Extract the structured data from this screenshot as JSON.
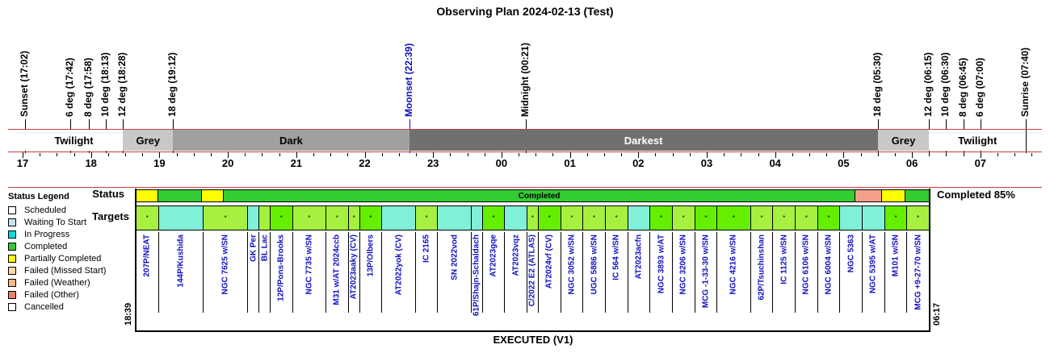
{
  "title": "Observing Plan 2024-02-13 (Test)",
  "events": [
    {
      "label": "Sunset (17:02)",
      "time": "17:02",
      "color": "#000000"
    },
    {
      "label": "6 deg (17:42)",
      "time": "17:42",
      "color": "#000000"
    },
    {
      "label": "8 deg (17:58)",
      "time": "17:58",
      "color": "#000000"
    },
    {
      "label": "10 deg (18:13)",
      "time": "18:13",
      "color": "#000000"
    },
    {
      "label": "12 deg (18:28)",
      "time": "18:28",
      "color": "#000000"
    },
    {
      "label": "18 deg (19:12)",
      "time": "19:12",
      "color": "#000000"
    },
    {
      "label": "Moonset (22:39)",
      "time": "22:39",
      "color": "#1010c0"
    },
    {
      "label": "Midnight (00:21)",
      "time": "24:21",
      "color": "#000000"
    },
    {
      "label": "18 deg (05:30)",
      "time": "29:30",
      "color": "#000000"
    },
    {
      "label": "12 deg (06:15)",
      "time": "30:15",
      "color": "#000000"
    },
    {
      "label": "10 deg (06:30)",
      "time": "30:30",
      "color": "#000000"
    },
    {
      "label": "8 deg (06:45)",
      "time": "30:45",
      "color": "#000000"
    },
    {
      "label": "6 deg (07:00)",
      "time": "31:00",
      "color": "#000000"
    },
    {
      "label": "Sunrise (07:40)",
      "time": "31:40",
      "color": "#000000"
    }
  ],
  "bands": [
    {
      "label": "Twilight",
      "start": "17:02",
      "end": "18:28",
      "bg": "#ffffff",
      "fg": "#000000"
    },
    {
      "label": "Grey",
      "start": "18:28",
      "end": "19:12",
      "bg": "#c8c8c8",
      "fg": "#000000"
    },
    {
      "label": "Dark",
      "start": "19:12",
      "end": "22:39",
      "bg": "#a0a0a0",
      "fg": "#000000"
    },
    {
      "label": "Darkest",
      "start": "22:39",
      "end": "29:30",
      "bg": "#707070",
      "fg": "#ffffff"
    },
    {
      "label": "Grey",
      "start": "29:30",
      "end": "30:15",
      "bg": "#c8c8c8",
      "fg": "#000000"
    },
    {
      "label": "Twilight",
      "start": "30:15",
      "end": "31:40",
      "bg": "#ffffff",
      "fg": "#000000"
    }
  ],
  "hours": [
    "17",
    "18",
    "19",
    "20",
    "21",
    "22",
    "23",
    "00",
    "01",
    "02",
    "03",
    "04",
    "05",
    "06",
    "07"
  ],
  "row_labels": {
    "status": "Status",
    "targets": "Targets"
  },
  "status_segments": [
    {
      "label": "",
      "units": 1,
      "color": "#ffff00"
    },
    {
      "label": "",
      "units": 2,
      "color": "#33cc33"
    },
    {
      "label": "",
      "units": 1,
      "color": "#ffff00"
    },
    {
      "label": "Completed",
      "units": 29,
      "color": "#33cc33"
    },
    {
      "label": "",
      "units": 1.2,
      "color": "#f4a08a"
    },
    {
      "label": "",
      "units": 1.1,
      "color": "#ffff00"
    },
    {
      "label": "",
      "units": 1.1,
      "color": "#33cc33"
    }
  ],
  "completed_text": "Completed 85%",
  "targets": [
    {
      "name": "207P/NEAT",
      "units": 1,
      "color": "#a6f040",
      "mark": "*"
    },
    {
      "name": "144P/Kushida",
      "units": 2,
      "color": "#80f0d8",
      "mark": ""
    },
    {
      "name": "NGC 7625 w/SN",
      "units": 2,
      "color": "#a6f040",
      "mark": "*"
    },
    {
      "name": "GK Per",
      "units": 0.5,
      "color": "#80f0d8",
      "mark": ""
    },
    {
      "name": "BL Lac",
      "units": 0.5,
      "color": "#a6f040",
      "mark": ""
    },
    {
      "name": "12P/Pons-Brooks",
      "units": 1,
      "color": "#66ee00",
      "mark": "*"
    },
    {
      "name": "NGC 7735 w/SN",
      "units": 1.5,
      "color": "#a6f040",
      "mark": "*"
    },
    {
      "name": "M31 w/AT 2024ccb",
      "units": 1,
      "color": "#a6f040",
      "mark": "*"
    },
    {
      "name": "AT2023aaky (CV)",
      "units": 0.5,
      "color": "#a6f040",
      "mark": "*"
    },
    {
      "name": "13P/Olbers",
      "units": 1,
      "color": "#66ee00",
      "mark": "*"
    },
    {
      "name": "AT2022yok (CV)",
      "units": 1.5,
      "color": "#80f0d8",
      "mark": ""
    },
    {
      "name": "IC 2165",
      "units": 1,
      "color": "#a6f040",
      "mark": "*"
    },
    {
      "name": "SN 2022vod",
      "units": 1.5,
      "color": "#80f0d8",
      "mark": ""
    },
    {
      "name": "61P/Shajn-Schaldach",
      "units": 0.5,
      "color": "#80f0d8",
      "mark": ""
    },
    {
      "name": "AT2023gqe",
      "units": 1,
      "color": "#66ee00",
      "mark": "*"
    },
    {
      "name": "AT2023vqz",
      "units": 1,
      "color": "#80f0d8",
      "mark": ""
    },
    {
      "name": "C/2022 E2 (ATLAS)",
      "units": 0.5,
      "color": "#a6f040",
      "mark": "*"
    },
    {
      "name": "AT2024vf (CV)",
      "units": 1,
      "color": "#66ee00",
      "mark": "*"
    },
    {
      "name": "NGC 3052 w/SN",
      "units": 1,
      "color": "#a6f040",
      "mark": "*"
    },
    {
      "name": "UGC 5886 w/SN",
      "units": 1,
      "color": "#a6f040",
      "mark": "*"
    },
    {
      "name": "IC 564 w/SN",
      "units": 1,
      "color": "#a6f040",
      "mark": "*"
    },
    {
      "name": "AT2023acfn",
      "units": 1,
      "color": "#80f0d8",
      "mark": ""
    },
    {
      "name": "NGC 3893 w/AT",
      "units": 1,
      "color": "#66ee00",
      "mark": "*"
    },
    {
      "name": "NGC 3206 w/SN",
      "units": 1,
      "color": "#a6f040",
      "mark": "*"
    },
    {
      "name": "MCG -1-33-30 w/SN",
      "units": 1,
      "color": "#66ee00",
      "mark": "*"
    },
    {
      "name": "NGC 4216 w/SN",
      "units": 1.5,
      "color": "#66ee00",
      "mark": "*"
    },
    {
      "name": "62P/Tsuchinshan",
      "units": 1,
      "color": "#a6f040",
      "mark": "*"
    },
    {
      "name": "IC 1125 w/SN",
      "units": 1,
      "color": "#a6f040",
      "mark": "*"
    },
    {
      "name": "NGC 6106 w/SN",
      "units": 1,
      "color": "#a6f040",
      "mark": "*"
    },
    {
      "name": "NGC 6004 w/SN",
      "units": 1,
      "color": "#66ee00",
      "mark": "*"
    },
    {
      "name": "NGC 5363",
      "units": 1,
      "color": "#80f0d8",
      "mark": ""
    },
    {
      "name": "NGC 5395 w/AT",
      "units": 1,
      "color": "#80f0d8",
      "mark": ""
    },
    {
      "name": "M101 w/SN",
      "units": 1,
      "color": "#66ee00",
      "mark": "*"
    },
    {
      "name": "MCG +9-27-70 w/SN",
      "units": 1,
      "color": "#a6f040",
      "mark": "*"
    }
  ],
  "start_time": "18:39",
  "end_time": "06:17",
  "footer": "EXECUTED (V1)",
  "legend": {
    "title": "Status Legend",
    "items": [
      {
        "label": "Scheduled",
        "color": "#ffffff"
      },
      {
        "label": "Waiting To Start",
        "color": "#c8e6f0"
      },
      {
        "label": "In Progress",
        "color": "#00e0e0"
      },
      {
        "label": "Completed",
        "color": "#33cc33"
      },
      {
        "label": "Partially Completed",
        "color": "#ffff00"
      },
      {
        "label": "Failed (Missed Start)",
        "color": "#ffd8a8"
      },
      {
        "label": "Failed (Weather)",
        "color": "#f8b888"
      },
      {
        "label": "Failed (Other)",
        "color": "#f08070"
      },
      {
        "label": "Cancelled",
        "color": "#ffffff"
      }
    ]
  }
}
